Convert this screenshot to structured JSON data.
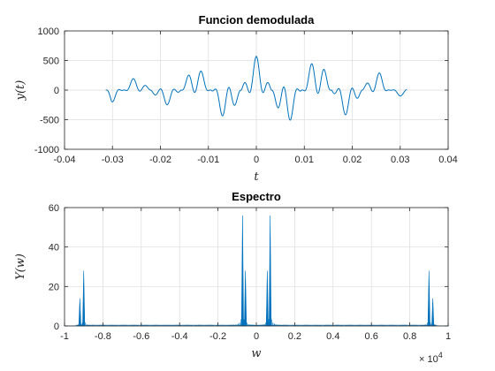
{
  "colors": {
    "series": "#0072BD",
    "grid": "#dcdcdc",
    "axis": "#262626",
    "background": "#ffffff"
  },
  "chart_data": [
    {
      "type": "line",
      "title": "Funcion demodulada",
      "xlabel": "t",
      "ylabel": "y(t)",
      "xlim": [
        -0.04,
        0.04
      ],
      "ylim": [
        -1000,
        1000
      ],
      "xticks": [
        -0.04,
        -0.03,
        -0.02,
        -0.01,
        0,
        0.01,
        0.02,
        0.03,
        0.04
      ],
      "xtick_labels": [
        "-0.04",
        "-0.03",
        "-0.02",
        "-0.01",
        "0",
        "0.01",
        "0.02",
        "0.03",
        "0.04"
      ],
      "yticks": [
        -1000,
        -500,
        0,
        500,
        1000
      ],
      "ytick_labels": [
        "-1000",
        "-500",
        "0",
        "500",
        "1000"
      ],
      "grid": true,
      "series": [
        {
          "x_range": [
            -0.0314,
            0.0314
          ],
          "envelope_peaks": [
            {
              "t": -0.0302,
              "amplitude": -200
            },
            {
              "t": -0.0253,
              "amplitude": 200
            },
            {
              "t": -0.0188,
              "amplitude": -250
            },
            {
              "t": -0.0126,
              "amplitude": 390
            },
            {
              "t": -0.0063,
              "amplitude": -480
            },
            {
              "t": 0.0,
              "amplitude": 570
            },
            {
              "t": 0.0063,
              "amplitude": -560
            },
            {
              "t": 0.0126,
              "amplitude": 540
            },
            {
              "t": 0.0188,
              "amplitude": -420
            },
            {
              "t": 0.0253,
              "amplitude": 300
            },
            {
              "t": 0.0302,
              "amplitude": -100
            }
          ],
          "oscillation_frequency_hz": 350
        }
      ]
    },
    {
      "type": "line",
      "title": "Espectro",
      "xlabel": "w",
      "ylabel": "Y(w)",
      "xlim": [
        -10000,
        10000
      ],
      "ylim": [
        0,
        60
      ],
      "xticks": [
        -10000,
        -8000,
        -6000,
        -4000,
        -2000,
        0,
        2000,
        4000,
        6000,
        8000,
        10000
      ],
      "xtick_labels": [
        "-1",
        "-0.8",
        "-0.6",
        "-0.4",
        "-0.2",
        "0",
        "0.2",
        "0.4",
        "0.6",
        "0.8",
        "1"
      ],
      "x_multiplier": "× 10",
      "x_multiplier_exp": "4",
      "yticks": [
        0,
        20,
        40,
        60
      ],
      "ytick_labels": [
        "0",
        "20",
        "40",
        "60"
      ],
      "grid": true,
      "series": [
        {
          "peaks": [
            {
              "w": -9200,
              "value": 14
            },
            {
              "w": -9000,
              "value": 28
            },
            {
              "w": -720,
              "value": 56
            },
            {
              "w": -570,
              "value": 28
            },
            {
              "w": 570,
              "value": 28
            },
            {
              "w": 720,
              "value": 56
            },
            {
              "w": 9000,
              "value": 28
            },
            {
              "w": 9200,
              "value": 14
            }
          ]
        }
      ]
    }
  ]
}
